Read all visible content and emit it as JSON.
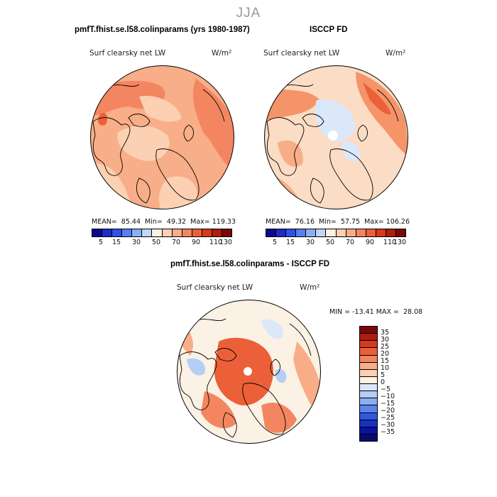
{
  "season": "JJA",
  "panels": {
    "model": {
      "title": "pmfT.fhist.se.l58.colinparams (yrs 1980-1987)",
      "subtitle": "Surf clearsky net LW",
      "units": "W/m²",
      "stats": "MEAN=  85.44  Min=  49.32  Max= 119.33"
    },
    "obs": {
      "title": "ISCCP FD",
      "subtitle": "Surf clearsky net LW",
      "units": "W/m²",
      "stats": "MEAN=  76.16  Min=  57.75  Max= 106.26"
    },
    "diff": {
      "title": "pmfT.fhist.se.l58.colinparams - ISCCP FD",
      "subtitle": "Surf clearsky net LW",
      "units": "W/m²",
      "stats": "MIN = -13.41 MAX =  28.08"
    }
  },
  "abs_scale": {
    "labels": [
      "5",
      "15",
      "30",
      "50",
      "70",
      "90",
      "110",
      "130"
    ],
    "colors": [
      "#0a0a8c",
      "#1c2cc8",
      "#3050e8",
      "#5a7ef0",
      "#8ab0f4",
      "#c0d8f8",
      "#fbf1e4",
      "#fcd0b2",
      "#f8ad88",
      "#f38660",
      "#eb6038",
      "#d63a1c",
      "#b01c0e",
      "#7a0808"
    ]
  },
  "diff_scale": {
    "labels": [
      "35",
      "30",
      "25",
      "20",
      "15",
      "10",
      "5",
      "0",
      "−5",
      "−10",
      "−15",
      "−20",
      "−25",
      "−30",
      "−35"
    ],
    "colors": [
      "#7a0808",
      "#b01c0e",
      "#d63a1c",
      "#eb6038",
      "#f38660",
      "#f8ad88",
      "#fcd0b2",
      "#fbf1e4",
      "#dbe8fa",
      "#b4cef6",
      "#8aaef2",
      "#5a86ec",
      "#3058e0",
      "#1632c0",
      "#0a129a",
      "#060a70"
    ]
  },
  "colors": {
    "model_base": "#f8ae88",
    "model_warm": "#f38660",
    "model_light": "#fcd0b2",
    "obs_base": "#fbdcc4",
    "obs_warm": "#f59468",
    "obs_cool": "#dbe8fa",
    "diff_base": "#fbf1e4",
    "diff_warm": "#eb6038",
    "diff_cool": "#b4cef6"
  }
}
